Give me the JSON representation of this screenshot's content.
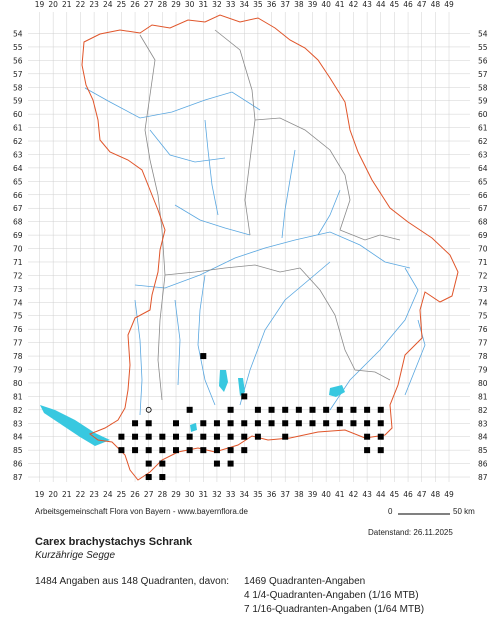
{
  "grid": {
    "x_labels": [
      "19",
      "20",
      "21",
      "22",
      "23",
      "24",
      "25",
      "26",
      "27",
      "28",
      "29",
      "30",
      "31",
      "32",
      "33",
      "34",
      "35",
      "36",
      "37",
      "38",
      "39",
      "40",
      "41",
      "42",
      "43",
      "44",
      "45",
      "46",
      "47",
      "48",
      "49"
    ],
    "y_labels": [
      "54",
      "55",
      "56",
      "57",
      "58",
      "59",
      "60",
      "61",
      "62",
      "63",
      "64",
      "65",
      "66",
      "67",
      "68",
      "69",
      "70",
      "71",
      "72",
      "73",
      "74",
      "75",
      "76",
      "77",
      "78",
      "79",
      "80",
      "81",
      "82",
      "83",
      "84",
      "85",
      "86",
      "87"
    ]
  },
  "occurrences": [
    [
      31,
      78
    ],
    [
      34,
      81
    ],
    [
      30,
      82
    ],
    [
      33,
      82
    ],
    [
      35,
      82
    ],
    [
      36,
      82
    ],
    [
      37,
      82
    ],
    [
      38,
      82
    ],
    [
      39,
      82
    ],
    [
      40,
      82
    ],
    [
      41,
      82
    ],
    [
      42,
      82
    ],
    [
      43,
      82
    ],
    [
      44,
      82
    ],
    [
      26,
      83
    ],
    [
      27,
      83
    ],
    [
      29,
      83
    ],
    [
      31,
      83
    ],
    [
      32,
      83
    ],
    [
      33,
      83
    ],
    [
      34,
      83
    ],
    [
      35,
      83
    ],
    [
      36,
      83
    ],
    [
      37,
      83
    ],
    [
      38,
      83
    ],
    [
      39,
      83
    ],
    [
      40,
      83
    ],
    [
      41,
      83
    ],
    [
      42,
      83
    ],
    [
      43,
      83
    ],
    [
      44,
      83
    ],
    [
      25,
      84
    ],
    [
      26,
      84
    ],
    [
      27,
      84
    ],
    [
      28,
      84
    ],
    [
      29,
      84
    ],
    [
      30,
      84
    ],
    [
      31,
      84
    ],
    [
      32,
      84
    ],
    [
      33,
      84
    ],
    [
      34,
      84
    ],
    [
      35,
      84
    ],
    [
      37,
      84
    ],
    [
      43,
      84
    ],
    [
      44,
      84
    ],
    [
      25,
      85
    ],
    [
      26,
      85
    ],
    [
      27,
      85
    ],
    [
      28,
      85
    ],
    [
      29,
      85
    ],
    [
      30,
      85
    ],
    [
      31,
      85
    ],
    [
      32,
      85
    ],
    [
      33,
      85
    ],
    [
      34,
      85
    ],
    [
      43,
      85
    ],
    [
      44,
      85
    ],
    [
      27,
      86
    ],
    [
      28,
      86
    ],
    [
      32,
      86
    ],
    [
      33,
      86
    ],
    [
      27,
      87
    ],
    [
      28,
      87
    ]
  ],
  "open_markers": [
    [
      27,
      82
    ]
  ],
  "colors": {
    "dot": "#000000",
    "state_border": "#e0552a",
    "river": "#5aa7e0",
    "district": "#8a8a8a",
    "lake": "#38c8e0",
    "grid": "#d0d0d0"
  },
  "footer": {
    "credit": "Arbeitsgemeinschaft Flora von Bayern - www.bayernflora.de",
    "scale_zero": "0",
    "scale_km": "50 km",
    "date": "Datenstand: 26.11.2025",
    "species": "Carex brachystachys Schrank",
    "common_name": "Kurzährige Segge",
    "summary": "1484 Angaben aus 148 Quadranten, davon:",
    "stats": [
      "1469 Quadranten-Angaben",
      "4 1/4-Quadranten-Angaben (1/16 MTB)",
      "7 1/16-Quadranten-Angaben (1/64 MTB)"
    ]
  }
}
